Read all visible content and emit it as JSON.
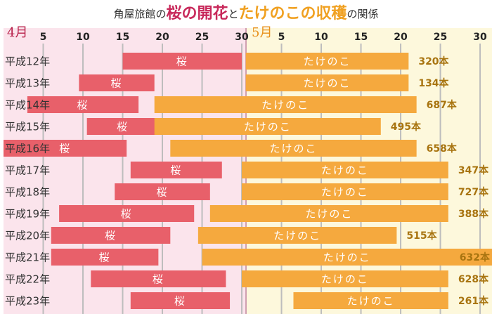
{
  "chart_data": {
    "type": "range_bar",
    "title_parts": [
      "角屋旅館の",
      "桜の開花",
      "と",
      "たけのこの収穫",
      "の関係"
    ],
    "month_labels": [
      "4月",
      "5月"
    ],
    "xlim": [
      0,
      61.5
    ],
    "xticks": [
      5,
      10,
      15,
      20,
      25,
      30,
      {
        "value": 35,
        "label": "5"
      },
      {
        "value": 40,
        "label": "10"
      },
      {
        "value": 45,
        "label": "15"
      },
      {
        "value": 50,
        "label": "20"
      },
      {
        "value": 55,
        "label": "25"
      },
      {
        "value": 60,
        "label": "30"
      }
    ],
    "grid": true,
    "categories": [
      "平成12年",
      "平成13年",
      "平成14年",
      "平成15年",
      "平成16年",
      "平成17年",
      "平成18年",
      "平成19年",
      "平成20年",
      "平成21年",
      "平成22年",
      "平成23年"
    ],
    "series": [
      {
        "name": "桜",
        "color": "#e8606a",
        "start": [
          15,
          9.5,
          3,
          10.5,
          0,
          16,
          14,
          7,
          6,
          6,
          11,
          16
        ],
        "end": [
          30,
          19,
          17,
          19.5,
          15.5,
          27.5,
          26,
          24,
          21,
          19.5,
          28,
          28.5
        ]
      },
      {
        "name": "たけのこ",
        "color": "#f5a93e",
        "start": [
          30.5,
          30.5,
          19,
          19,
          21,
          30,
          30,
          26,
          24.5,
          25,
          30,
          36.5
        ],
        "end": [
          51,
          51,
          52,
          47.5,
          52,
          56,
          56,
          56,
          49.5,
          61.5,
          56,
          56
        ]
      }
    ],
    "values": [
      320,
      134,
      687,
      495,
      658,
      347,
      727,
      388,
      515,
      632,
      628,
      261
    ],
    "value_labels": [
      "320本",
      "134本",
      "687本",
      "495本",
      "658本",
      "347本",
      "727本",
      "388本",
      "515本",
      "632本",
      "628本",
      "261本"
    ]
  }
}
